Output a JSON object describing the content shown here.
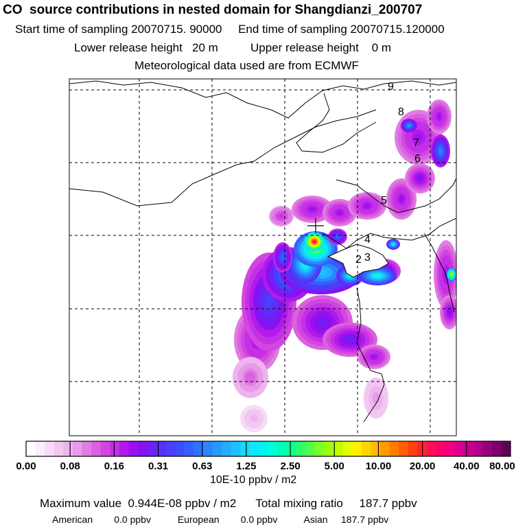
{
  "header": {
    "title": "CO  source contributions in nested domain for Shangdianzi_200707",
    "sampling_line": "Start time of sampling 20070715. 90000     End time of sampling 20070715.120000",
    "release_line": "Lower release height   20 m          Upper release height    0 m",
    "met_line": "Meteorological data used are from ECMWF"
  },
  "chart_data": {
    "type": "heatmap",
    "title": "CO  source contributions in nested domain for Shangdianzi_200707",
    "receptor_marker": "+",
    "trajectory_labels": [
      "2",
      "3",
      "4",
      "5",
      "6",
      "7",
      "8",
      "9"
    ],
    "colorbar": {
      "tick_labels": [
        "0.00",
        "0.08",
        "0.16",
        "0.31",
        "0.63",
        "1.25",
        "2.50",
        "5.00",
        "10.00",
        "20.00",
        "40.00",
        "80.00"
      ],
      "unit": "10E-10 ppbv / m2",
      "colors": [
        "#ffffff",
        "#fbeefb",
        "#f7dcf7",
        "#f2c7f2",
        "#edb4ee",
        "#e79ae9",
        "#e07de3",
        "#da62df",
        "#d246df",
        "#c430e6",
        "#b11aeb",
        "#9d10ee",
        "#8612f1",
        "#7020f4",
        "#5a30f8",
        "#4a3ffb",
        "#3d4ffc",
        "#3560fd",
        "#2e73fd",
        "#2a86fe",
        "#2699fe",
        "#22adfe",
        "#1ec1fe",
        "#1ad5fe",
        "#10e7fa",
        "#00f5f0",
        "#00ffd6",
        "#00ffb4",
        "#10ff90",
        "#30ff6c",
        "#55ff48",
        "#7aff28",
        "#9cff10",
        "#bfff00",
        "#e2ff00",
        "#fff000",
        "#ffd400",
        "#ffb800",
        "#ff9a00",
        "#ff7c00",
        "#ff5e00",
        "#ff4010",
        "#ff2430",
        "#ff1050",
        "#ff0070",
        "#ee0080",
        "#dd0090",
        "#c80090",
        "#b00088",
        "#960078",
        "#7c0068",
        "#600058"
      ]
    }
  },
  "stats": {
    "max_line": "Maximum value  0.944E-08 ppbv / m2      Total mixing ratio     187.7 ppbv",
    "regional_line": "American        0.0 ppbv          European        0.0 ppbv          Asian     187.7 ppbv"
  }
}
